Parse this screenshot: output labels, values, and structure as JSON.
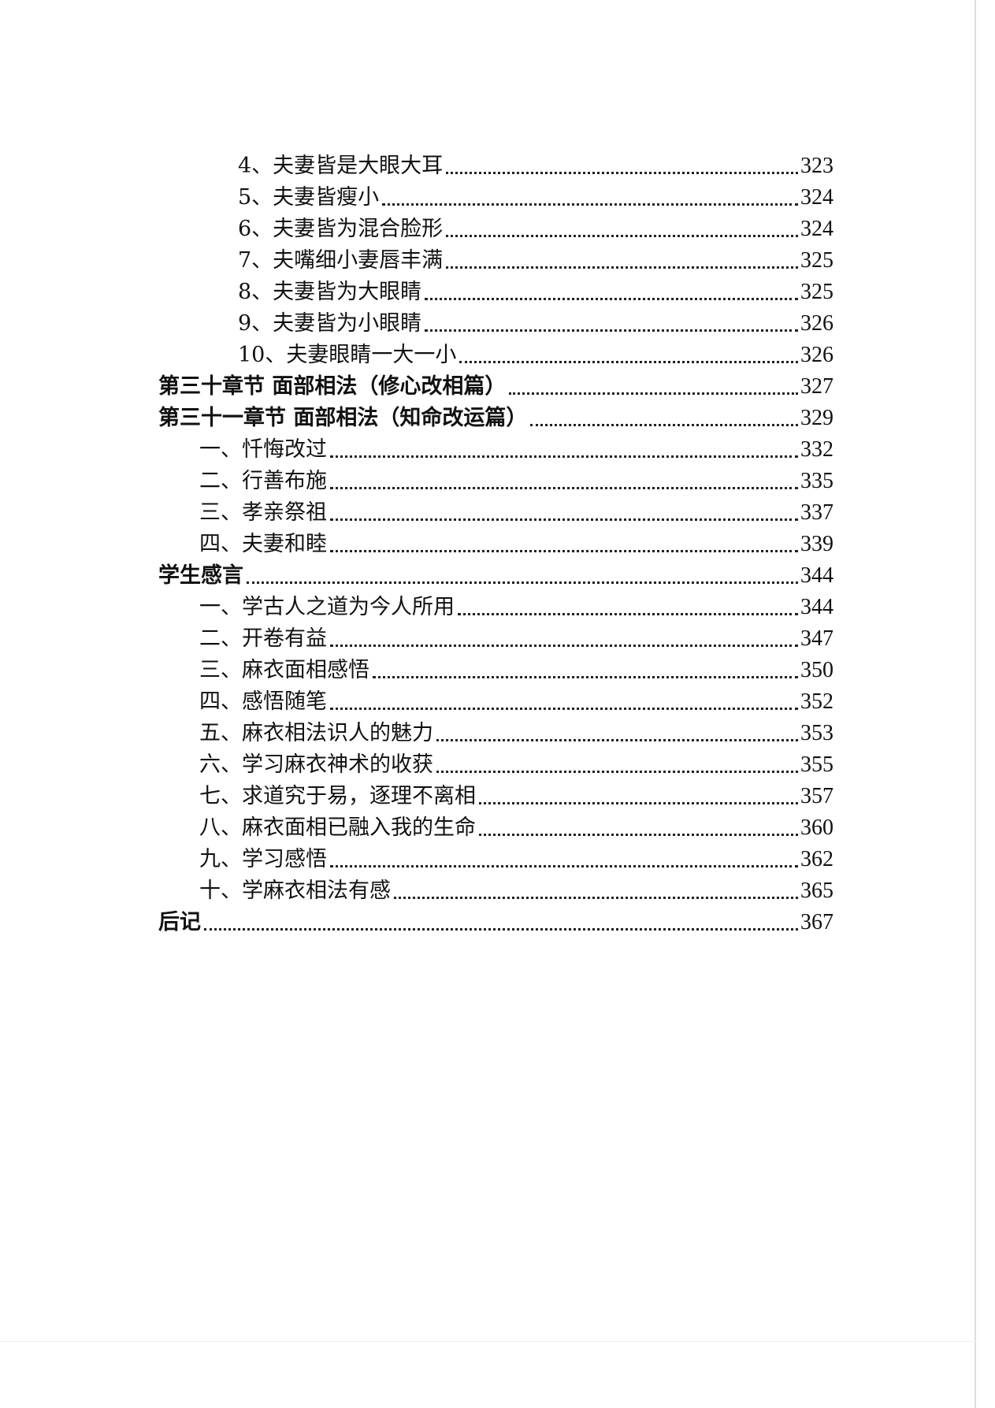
{
  "entries": [
    {
      "level": 2,
      "title": "4、夫妻皆是大眼大耳",
      "page": "323"
    },
    {
      "level": 2,
      "title": "5、夫妻皆瘦小",
      "page": "324"
    },
    {
      "level": 2,
      "title": "6、夫妻皆为混合脸形",
      "page": "324"
    },
    {
      "level": 2,
      "title": "7、夫嘴细小妻唇丰满",
      "page": "325"
    },
    {
      "level": 2,
      "title": "8、夫妻皆为大眼睛",
      "page": "325"
    },
    {
      "level": 2,
      "title": "9、夫妻皆为小眼睛",
      "page": "326"
    },
    {
      "level": 2,
      "title": "10、夫妻眼睛一大一小",
      "page": "326"
    },
    {
      "level": 0,
      "title": "第三十章节  面部相法（修心改相篇）",
      "page": "327"
    },
    {
      "level": 0,
      "title": "第三十一章节  面部相法（知命改运篇）",
      "page": "329"
    },
    {
      "level": 1,
      "title": "一、忏悔改过",
      "page": "332"
    },
    {
      "level": 1,
      "title": "二、行善布施",
      "page": "335"
    },
    {
      "level": 1,
      "title": "三、孝亲祭祖",
      "page": "337"
    },
    {
      "level": 1,
      "title": "四、夫妻和睦",
      "page": "339"
    },
    {
      "level": 0,
      "title": "学生感言",
      "page": "344"
    },
    {
      "level": 1,
      "title": "一、学古人之道为今人所用",
      "page": "344"
    },
    {
      "level": 1,
      "title": "二、开卷有益",
      "page": "347"
    },
    {
      "level": 1,
      "title": "三、麻衣面相感悟",
      "page": "350"
    },
    {
      "level": 1,
      "title": "四、感悟随笔",
      "page": "352"
    },
    {
      "level": 1,
      "title": "五、麻衣相法识人的魅力",
      "page": "353"
    },
    {
      "level": 1,
      "title": "六、学习麻衣神术的收获",
      "page": "355"
    },
    {
      "level": 1,
      "title": "七、求道究于易，逐理不离相",
      "page": "357"
    },
    {
      "level": 1,
      "title": "八、麻衣面相已融入我的生命",
      "page": "360"
    },
    {
      "level": 1,
      "title": "九、学习感悟",
      "page": "362"
    },
    {
      "level": 1,
      "title": "十、学麻衣相法有感",
      "page": "365"
    },
    {
      "level": 0,
      "title": "后记",
      "page": "367"
    }
  ]
}
